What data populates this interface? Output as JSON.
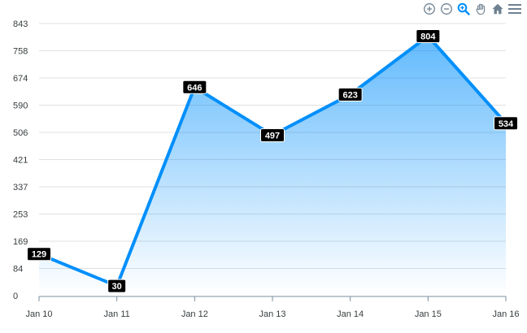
{
  "toolbar": {
    "icons": [
      "zoom-in-icon",
      "zoom-out-icon",
      "zoom-selection-icon",
      "pan-hand-icon",
      "reset-home-icon",
      "menu-icon"
    ],
    "accent": "#008ffb",
    "inactive": "#6e8192"
  },
  "chart_data": {
    "type": "area",
    "categories": [
      "Jan 10",
      "Jan 11",
      "Jan 12",
      "Jan 13",
      "Jan 14",
      "Jan 15",
      "Jan 16"
    ],
    "series": [
      {
        "values": [
          129,
          30,
          646,
          497,
          623,
          804,
          534
        ]
      }
    ],
    "data_labels": [
      "129",
      "30",
      "646",
      "497",
      "623",
      "804",
      "534"
    ],
    "y_ticks": [
      "0",
      "84",
      "169",
      "253",
      "337",
      "421",
      "506",
      "590",
      "674",
      "758",
      "843"
    ],
    "ylim": [
      0,
      843
    ],
    "grid": true,
    "title": "",
    "xlabel": "",
    "ylabel": "",
    "colors": {
      "line": "#008ffb",
      "grid": "#e0e0e0",
      "label_bg": "#000000",
      "label_text": "#ffffff"
    }
  }
}
